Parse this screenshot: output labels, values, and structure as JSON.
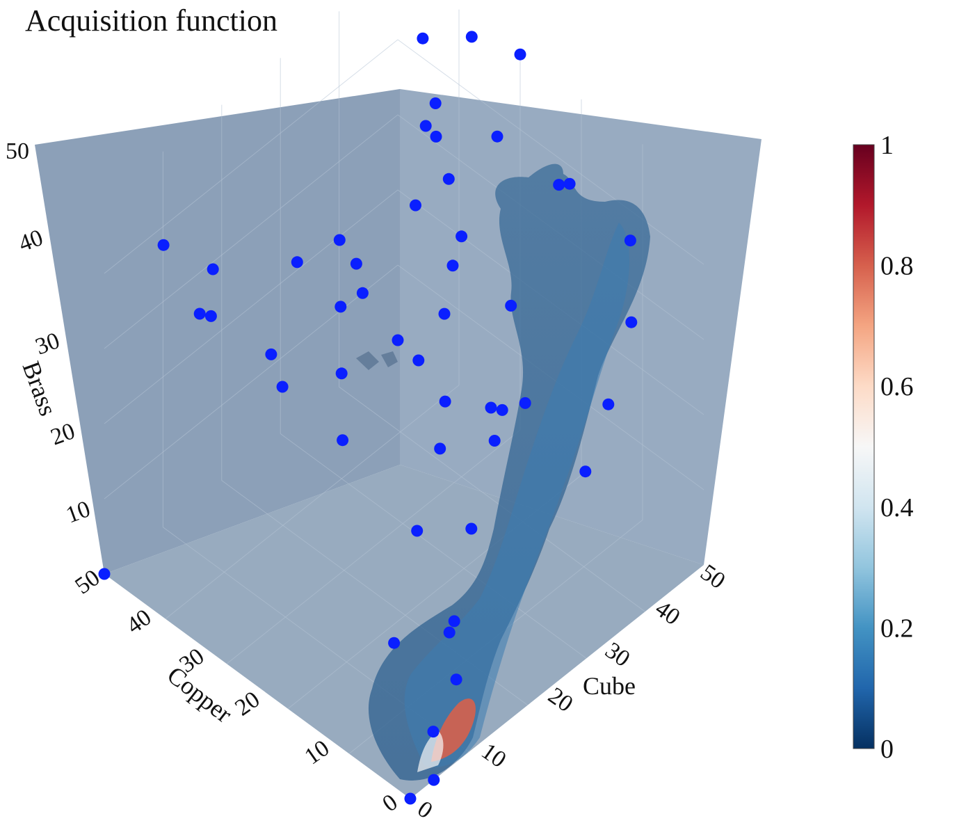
{
  "title": "Acquisition function",
  "chart_data": {
    "type": "scatter3d-isosurface",
    "title": "Acquisition function",
    "axes": {
      "x": {
        "label": "Cube",
        "range": [
          0,
          50
        ],
        "ticks": [
          "0",
          "10",
          "20",
          "30",
          "40",
          "50"
        ]
      },
      "y": {
        "label": "Copper",
        "range": [
          0,
          50
        ],
        "ticks": [
          "0",
          "10",
          "20",
          "30",
          "40",
          "50"
        ]
      },
      "z": {
        "label": "Brass",
        "range": [
          0,
          50
        ],
        "ticks": [
          "10",
          "20",
          "30",
          "40",
          "50"
        ]
      }
    },
    "colorbar": {
      "range": [
        0,
        1
      ],
      "ticks": [
        "0",
        "0.2",
        "0.4",
        "0.6",
        "0.8",
        "1"
      ],
      "colorscale": [
        "#053061",
        "#2166ac",
        "#4393c3",
        "#92c5de",
        "#d1e5f0",
        "#f7f7f7",
        "#fddbc7",
        "#f4a582",
        "#d6604d",
        "#b2182b",
        "#67001f"
      ]
    },
    "marker_color": "#0a1fff",
    "points": [
      [
        0,
        0,
        0
      ],
      [
        4,
        0,
        0
      ],
      [
        6,
        2,
        4
      ],
      [
        12,
        4,
        6
      ],
      [
        15,
        8,
        8
      ],
      [
        16,
        18,
        0
      ],
      [
        20,
        12,
        4
      ],
      [
        22,
        20,
        10
      ],
      [
        25,
        14,
        12
      ],
      [
        28,
        22,
        16
      ],
      [
        30,
        15,
        20
      ],
      [
        32,
        25,
        18
      ],
      [
        35,
        28,
        26
      ],
      [
        38,
        20,
        30
      ],
      [
        40,
        30,
        32
      ],
      [
        42,
        34,
        36
      ],
      [
        44,
        38,
        38
      ],
      [
        46,
        40,
        40
      ],
      [
        48,
        44,
        45
      ],
      [
        50,
        46,
        48
      ],
      [
        30,
        40,
        14
      ],
      [
        34,
        44,
        18
      ],
      [
        38,
        48,
        22
      ],
      [
        26,
        36,
        10
      ],
      [
        22,
        42,
        16
      ],
      [
        18,
        40,
        24
      ],
      [
        14,
        46,
        28
      ],
      [
        10,
        44,
        32
      ],
      [
        8,
        48,
        40
      ],
      [
        6,
        38,
        44
      ],
      [
        12,
        30,
        46
      ],
      [
        20,
        28,
        42
      ],
      [
        28,
        26,
        46
      ],
      [
        36,
        32,
        48
      ],
      [
        44,
        28,
        44
      ],
      [
        48,
        20,
        40
      ],
      [
        50,
        12,
        36
      ],
      [
        46,
        8,
        30
      ],
      [
        40,
        6,
        24
      ],
      [
        34,
        4,
        20
      ],
      [
        30,
        10,
        28
      ],
      [
        24,
        8,
        32
      ],
      [
        20,
        6,
        36
      ],
      [
        16,
        14,
        40
      ],
      [
        26,
        18,
        44
      ],
      [
        42,
        16,
        46
      ],
      [
        50,
        30,
        50
      ],
      [
        48,
        36,
        50
      ],
      [
        50,
        50,
        0
      ],
      [
        0,
        50,
        0
      ],
      [
        44,
        50,
        10
      ]
    ]
  }
}
